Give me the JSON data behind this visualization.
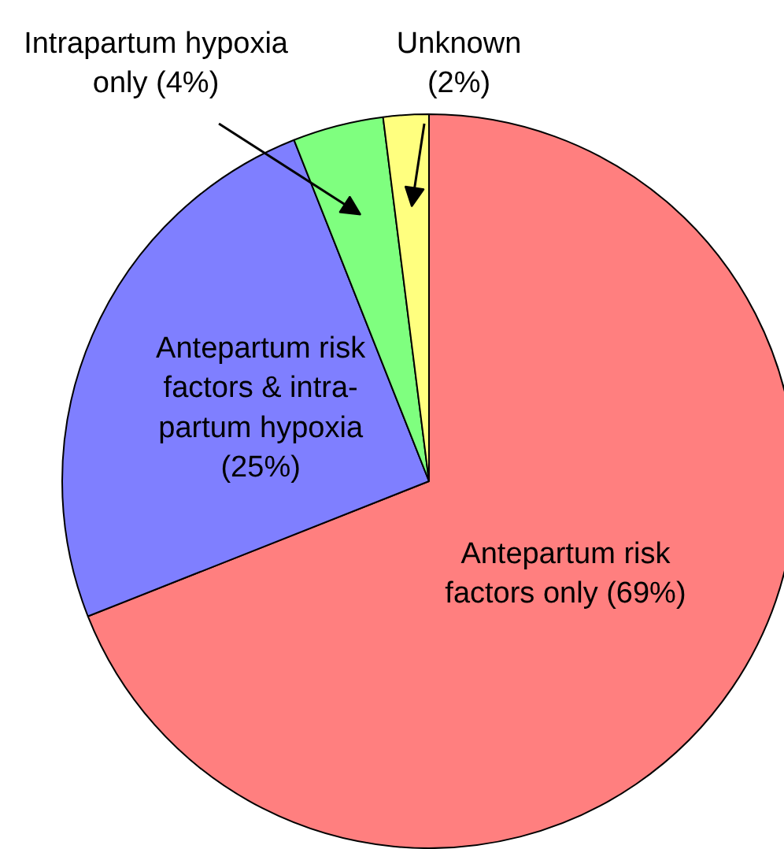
{
  "chart_data": {
    "type": "pie",
    "categories": [
      "Antepartum risk\nfactors only (69%)",
      "Antepartum risk\nfactors & intra-\npartum hypoxia\n(25%)",
      "Intrapartum hypoxia\nonly (4%)",
      "Unknown\n(2%)"
    ],
    "values": [
      69,
      25,
      4,
      2
    ],
    "colors": [
      "#ff7f7f",
      "#7f7fff",
      "#7fff7f",
      "#ffff7f"
    ]
  }
}
